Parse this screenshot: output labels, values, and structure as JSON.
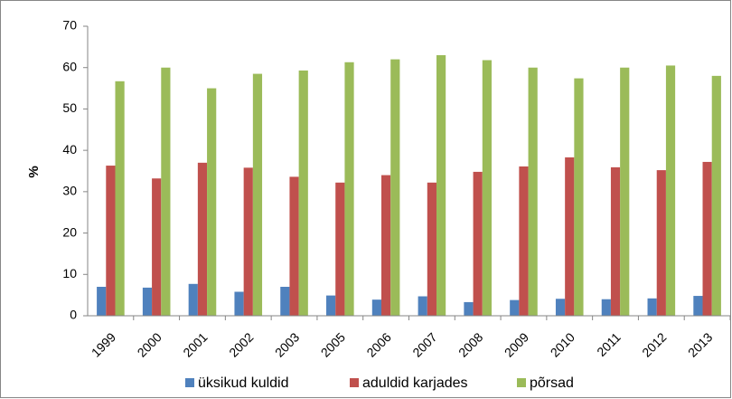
{
  "chart_data": {
    "type": "bar",
    "y_label": "%",
    "categories": [
      "1999",
      "2000",
      "2001",
      "2002",
      "2003",
      "2005",
      "2006",
      "2007",
      "2008",
      "2009",
      "2010",
      "2011",
      "2012",
      "2013"
    ],
    "series": [
      {
        "name": "üksikud kuldid",
        "color": "#4f81bd",
        "values": [
          7,
          6.8,
          7.7,
          5.8,
          7,
          4.9,
          3.9,
          4.7,
          3.3,
          3.8,
          4.1,
          4,
          4.2,
          4.8
        ]
      },
      {
        "name": "aduldid karjades",
        "color": "#c0504d",
        "values": [
          36.3,
          33.2,
          37,
          35.8,
          33.6,
          32.2,
          34,
          32.2,
          34.8,
          36.1,
          38.3,
          35.9,
          35.2,
          37.2
        ]
      },
      {
        "name": "põrsad",
        "color": "#9bbb59",
        "values": [
          56.7,
          60,
          55,
          58.5,
          59.3,
          61.3,
          62,
          63,
          61.8,
          60,
          57.4,
          60,
          60.5,
          58
        ]
      }
    ],
    "ylim": [
      0,
      70
    ],
    "yticks": [
      0,
      10,
      20,
      30,
      40,
      50,
      60,
      70
    ],
    "grid": false,
    "legend": "bottom"
  }
}
